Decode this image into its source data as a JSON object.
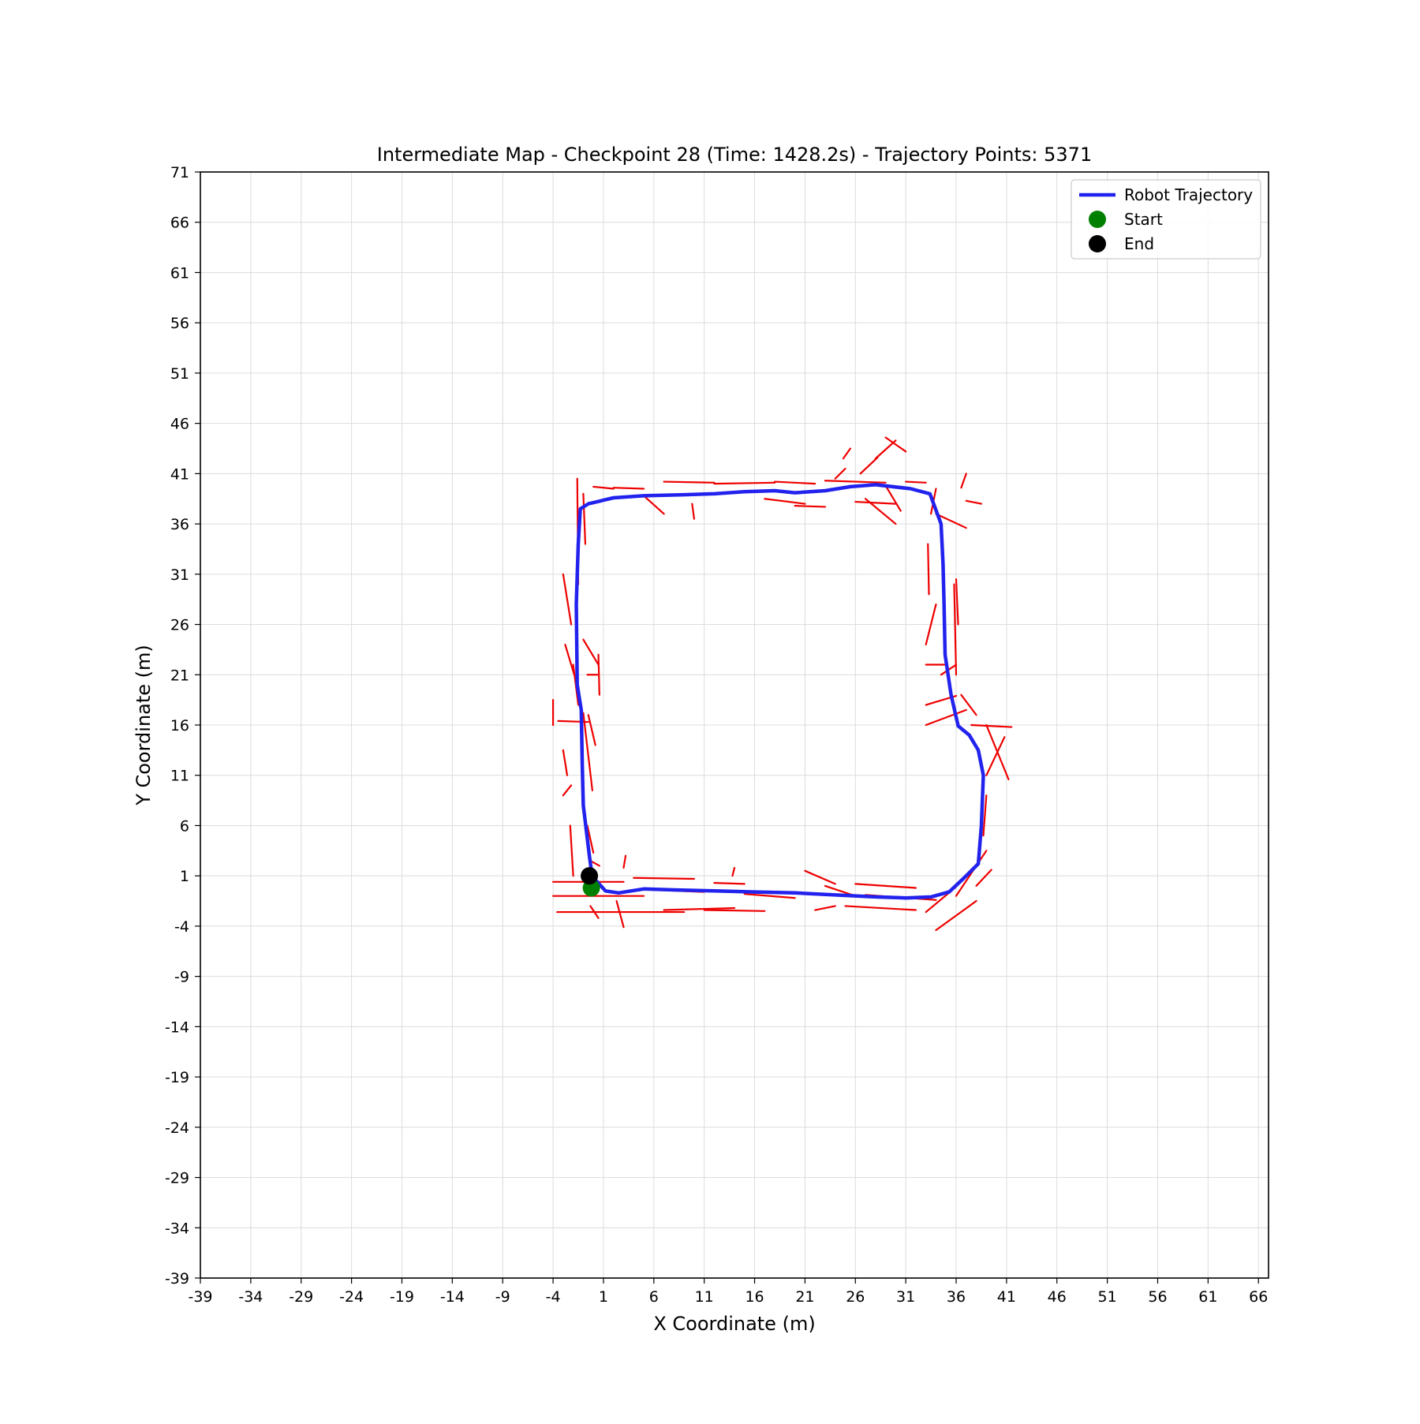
{
  "chart_data": {
    "type": "scatter",
    "title": "Intermediate Map - Checkpoint 28 (Time: 1428.2s) - Trajectory Points: 5371",
    "xlabel": "X Coordinate (m)",
    "ylabel": "Y Coordinate (m)",
    "xlim": [
      -39,
      67
    ],
    "ylim": [
      -39,
      71
    ],
    "xticks": [
      -39,
      -34,
      -29,
      -24,
      -19,
      -14,
      -9,
      -4,
      1,
      6,
      11,
      16,
      21,
      26,
      31,
      36,
      41,
      46,
      51,
      56,
      61,
      66
    ],
    "yticks": [
      -39,
      -34,
      -29,
      -24,
      -19,
      -14,
      -9,
      -4,
      1,
      6,
      11,
      16,
      21,
      26,
      31,
      36,
      41,
      46,
      51,
      56,
      61,
      66,
      71
    ],
    "grid": true,
    "legend_position": "top-right",
    "legend": [
      {
        "label": "Robot Trajectory",
        "kind": "line",
        "color": "#2222ee"
      },
      {
        "label": "Start",
        "kind": "marker",
        "color": "#008000"
      },
      {
        "label": "End",
        "kind": "marker",
        "color": "#000000"
      }
    ],
    "trajectory": {
      "name": "Robot Trajectory",
      "color": "#2222ee",
      "points": [
        [
          0.0,
          0.0
        ],
        [
          0.3,
          0.5
        ],
        [
          1.2,
          -0.5
        ],
        [
          2.5,
          -0.7
        ],
        [
          5.0,
          -0.3
        ],
        [
          8.0,
          -0.4
        ],
        [
          12.0,
          -0.5
        ],
        [
          16.0,
          -0.6
        ],
        [
          20.0,
          -0.7
        ],
        [
          24.0,
          -0.9
        ],
        [
          28.0,
          -1.1
        ],
        [
          31.0,
          -1.2
        ],
        [
          33.5,
          -1.1
        ],
        [
          35.3,
          -0.6
        ],
        [
          36.8,
          0.8
        ],
        [
          38.2,
          2.2
        ],
        [
          38.5,
          6.0
        ],
        [
          38.7,
          11.0
        ],
        [
          38.2,
          13.5
        ],
        [
          37.3,
          15.0
        ],
        [
          36.2,
          15.9
        ],
        [
          35.5,
          19.0
        ],
        [
          34.9,
          23.0
        ],
        [
          34.8,
          28.0
        ],
        [
          34.7,
          32.0
        ],
        [
          34.5,
          36.0
        ],
        [
          33.4,
          39.0
        ],
        [
          31.5,
          39.5
        ],
        [
          28.0,
          39.9
        ],
        [
          25.5,
          39.7
        ],
        [
          23.0,
          39.3
        ],
        [
          20.0,
          39.1
        ],
        [
          18.0,
          39.3
        ],
        [
          15.0,
          39.2
        ],
        [
          12.0,
          39.0
        ],
        [
          9.0,
          38.9
        ],
        [
          5.0,
          38.8
        ],
        [
          2.0,
          38.6
        ],
        [
          -0.5,
          38.0
        ],
        [
          -1.3,
          37.5
        ],
        [
          -1.5,
          34.0
        ],
        [
          -1.7,
          28.0
        ],
        [
          -1.6,
          20.0
        ],
        [
          -1.2,
          17.5
        ],
        [
          -1.1,
          12.0
        ],
        [
          -1.0,
          8.0
        ],
        [
          -0.4,
          3.0
        ],
        [
          -0.1,
          0.8
        ],
        [
          -0.2,
          1.3
        ]
      ]
    },
    "start": {
      "name": "Start",
      "x": -0.2,
      "y": -0.2,
      "color": "#008000"
    },
    "end": {
      "name": "End",
      "x": -0.4,
      "y": 1.0,
      "color": "#000000"
    },
    "map_obstacles": {
      "color": "#ee0000",
      "segments": [
        [
          -4,
          -1,
          5,
          -1
        ],
        [
          -4,
          0.4,
          3,
          0.4
        ],
        [
          -3.6,
          -2.6,
          9,
          -2.6
        ],
        [
          6,
          -0.4,
          11,
          -0.6
        ],
        [
          4,
          0.8,
          10,
          0.7
        ],
        [
          11,
          -2.4,
          17,
          -2.5
        ],
        [
          15,
          -0.8,
          20,
          -1.2
        ],
        [
          25,
          -2,
          32,
          -2.4
        ],
        [
          26,
          0.2,
          32,
          -0.2
        ],
        [
          27,
          -0.9,
          34,
          -1.4
        ],
        [
          21,
          1.5,
          24,
          0.2
        ],
        [
          23,
          0,
          26,
          -1
        ],
        [
          34,
          -4.4,
          38,
          -1.5
        ],
        [
          33,
          -2.6,
          36,
          -0.1
        ],
        [
          36,
          -1,
          39,
          3.5
        ],
        [
          38,
          0,
          39.5,
          1.6
        ],
        [
          38.7,
          5,
          39,
          9
        ],
        [
          39,
          11,
          40.8,
          14.8
        ],
        [
          37.5,
          16,
          41.5,
          15.8
        ],
        [
          39,
          16,
          41.2,
          10.6
        ],
        [
          33,
          18,
          36,
          18.9
        ],
        [
          36.5,
          19,
          38,
          17
        ],
        [
          33,
          16,
          37,
          17.5
        ],
        [
          34.5,
          21,
          36,
          22
        ],
        [
          33,
          22,
          35,
          22
        ],
        [
          33,
          24,
          34,
          28
        ],
        [
          35.8,
          30,
          36,
          21
        ],
        [
          33.2,
          34,
          33.3,
          29
        ],
        [
          36,
          30.5,
          36.2,
          26
        ],
        [
          33.5,
          37,
          34,
          39.5
        ],
        [
          34,
          37,
          37,
          35.6
        ],
        [
          36.5,
          39.6,
          37,
          41
        ],
        [
          37,
          38.3,
          38.5,
          38
        ],
        [
          26.5,
          41,
          28.2,
          42.6
        ],
        [
          28,
          42.5,
          30,
          44.3
        ],
        [
          29,
          44.6,
          31,
          43.2
        ],
        [
          24.8,
          42.5,
          25.5,
          43.5
        ],
        [
          27,
          38.5,
          30,
          36
        ],
        [
          29,
          39.8,
          30.5,
          37.3
        ],
        [
          31,
          40.2,
          33,
          40.1
        ],
        [
          24,
          40.5,
          25,
          41.5
        ],
        [
          -1.6,
          40.5,
          -1.5,
          30
        ],
        [
          -3,
          31,
          -2.2,
          26
        ],
        [
          -1,
          39,
          -0.8,
          34
        ],
        [
          0,
          39.7,
          2,
          39.5
        ],
        [
          2,
          39.6,
          5,
          39.5
        ],
        [
          7,
          40.2,
          12,
          40.1
        ],
        [
          12,
          40,
          18,
          40.1
        ],
        [
          18,
          40.2,
          22,
          40
        ],
        [
          23,
          40.3,
          29,
          40.1
        ],
        [
          5,
          38.8,
          7,
          37
        ],
        [
          9.8,
          38,
          10,
          36.5
        ],
        [
          17,
          38.5,
          21,
          38
        ],
        [
          20,
          37.8,
          23,
          37.7
        ],
        [
          26,
          38.2,
          30,
          38
        ],
        [
          -3.5,
          16.4,
          -0.5,
          16.3
        ],
        [
          -4,
          16,
          -4,
          18.5
        ],
        [
          -1,
          17.2,
          -0.1,
          9.5
        ],
        [
          -3,
          9,
          -2.2,
          10
        ],
        [
          -2,
          22,
          -1.5,
          18
        ],
        [
          -0.6,
          21,
          0.4,
          21
        ],
        [
          -0.5,
          17,
          0.2,
          14
        ],
        [
          -2.3,
          6,
          -2,
          1
        ],
        [
          -0.6,
          6,
          0,
          3.3
        ],
        [
          -0.3,
          2.5,
          0.6,
          2
        ],
        [
          3,
          1.8,
          3.2,
          3
        ],
        [
          -0.3,
          -2,
          0.5,
          -3.2
        ],
        [
          2.3,
          -1.5,
          3,
          -4.1
        ],
        [
          13.8,
          1,
          14,
          1.8
        ],
        [
          12,
          0.3,
          15,
          0.2
        ],
        [
          7,
          -2.4,
          14,
          -2.2
        ],
        [
          22,
          -2.4,
          24,
          -2
        ],
        [
          -3,
          13.5,
          -2.6,
          11
        ],
        [
          -2.8,
          24,
          -1.9,
          21
        ],
        [
          -1,
          24.5,
          0.5,
          22
        ],
        [
          0.5,
          23,
          0.6,
          19
        ]
      ]
    }
  }
}
